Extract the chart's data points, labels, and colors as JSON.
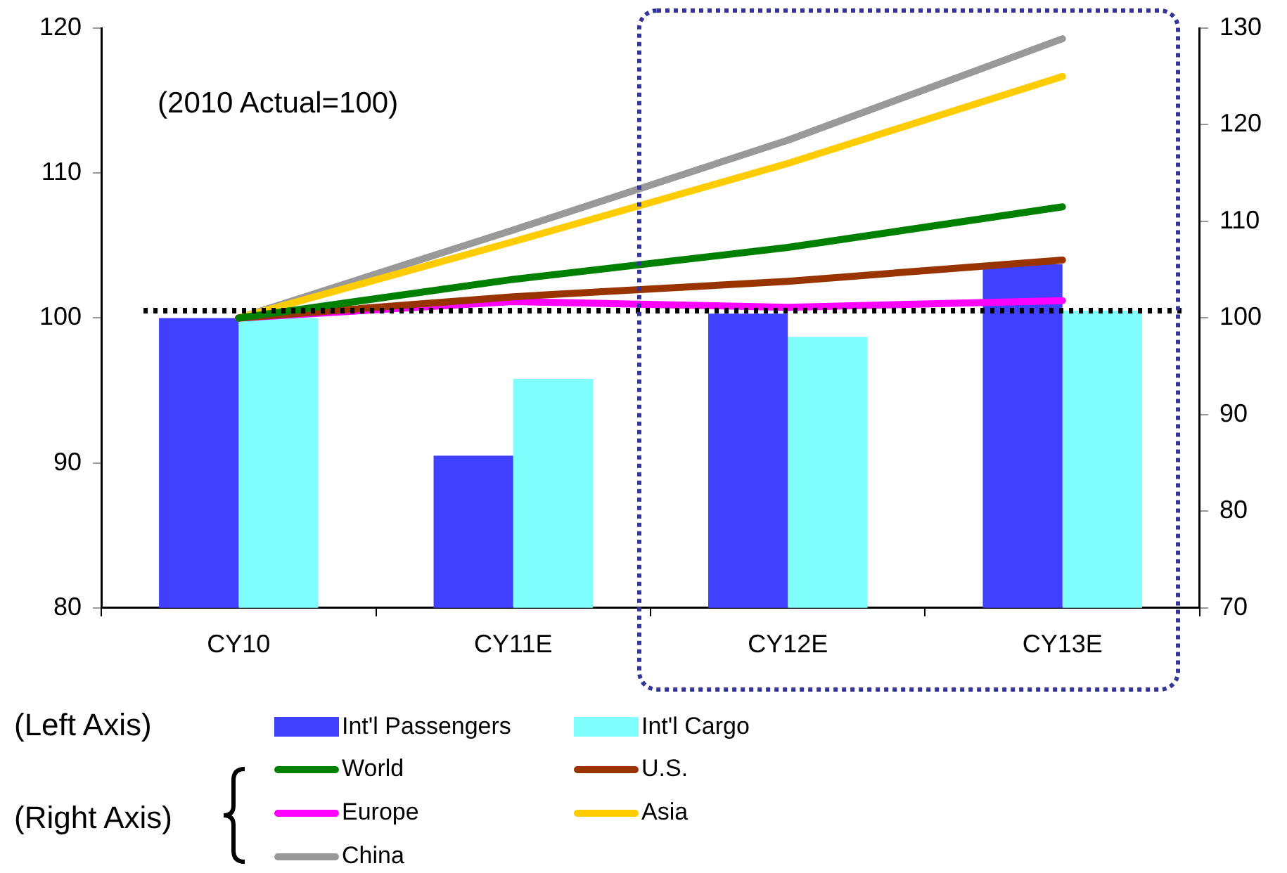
{
  "chart_data": {
    "type": "bar",
    "categories": [
      "CY10",
      "CY11E",
      "CY12E",
      "CY13E"
    ],
    "series": [
      {
        "name": "Int'l Passengers",
        "color": "#4040ff",
        "values": [
          100,
          90.5,
          100.3,
          103.7
        ]
      },
      {
        "name": "Int'l Cargo",
        "color": "#80ffff",
        "values": [
          100,
          95.8,
          98.7,
          100.5
        ]
      },
      {
        "name": "World",
        "type": "line",
        "axis": "y2",
        "color": "#008000",
        "values": [
          100,
          104,
          107.3,
          111.5
        ]
      },
      {
        "name": "U.S.",
        "type": "line",
        "axis": "y2",
        "color": "#993300",
        "values": [
          100,
          102.2,
          103.8,
          106
        ]
      },
      {
        "name": "Europe",
        "type": "line",
        "axis": "y2",
        "color": "#ff00ff",
        "values": [
          100,
          101.7,
          101.1,
          101.8
        ]
      },
      {
        "name": "Asia",
        "type": "line",
        "axis": "y2",
        "color": "#ffcc00",
        "values": [
          100,
          107.9,
          116,
          125
        ]
      },
      {
        "name": "China",
        "type": "line",
        "axis": "y2",
        "color": "#999999",
        "values": [
          100,
          109.1,
          118.4,
          128.9
        ]
      }
    ],
    "ylim": [
      80,
      120
    ],
    "yticks": [
      80,
      90,
      100,
      110,
      120
    ],
    "y2lim": [
      70,
      130
    ],
    "y2ticks": [
      70,
      80,
      90,
      100,
      110,
      120,
      130
    ],
    "ref_lines": [
      {
        "axis": "y",
        "value": 100.5,
        "color": "#000000",
        "line_style": "dotted"
      }
    ],
    "annotations": [
      "(2010 Actual=100)",
      "(Left Axis)",
      "(Right Axis)"
    ],
    "legend": "bottom",
    "grid": false,
    "marker": "none",
    "line_style": "solid"
  }
}
